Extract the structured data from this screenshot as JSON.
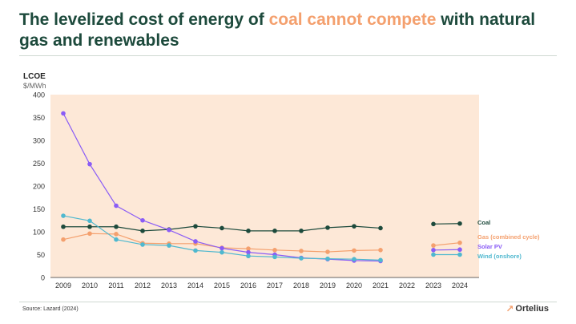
{
  "header": {
    "title_pre": "The levelized cost of energy of ",
    "title_accent": "coal cannot compete",
    "title_post": " with natural gas and renewables",
    "accent_color": "#f4a06e",
    "title_color": "#1d4a3c"
  },
  "axis_title": "LCOE",
  "axis_unit": "$/MWh",
  "footer": {
    "source": "Source: Lazard (2024)",
    "brand": "Ortelius",
    "brand_icon": "arrow-swoosh-icon"
  },
  "chart_data": {
    "type": "line",
    "categories": [
      "2009",
      "2010",
      "2011",
      "2012",
      "2013",
      "2014",
      "2015",
      "2016",
      "2017",
      "2018",
      "2019",
      "2020",
      "2021",
      "2022",
      "2023",
      "2024"
    ],
    "ylim": [
      0,
      400
    ],
    "yticks": [
      0,
      50,
      100,
      150,
      200,
      250,
      300,
      350,
      400
    ],
    "grid": false,
    "plot_background": "#fde8d7",
    "legend_placement": "right (labels at line ends)",
    "series": [
      {
        "name": "Coal",
        "color": "#1d4a3c",
        "values": [
          111,
          111,
          111,
          102,
          105,
          112,
          108,
          102,
          102,
          102,
          109,
          112,
          108,
          null,
          117,
          118
        ]
      },
      {
        "name": "Gas (combined cycle)",
        "color": "#f4a06e",
        "values": [
          83,
          96,
          95,
          75,
          74,
          74,
          65,
          63,
          60,
          58,
          56,
          59,
          60,
          null,
          70,
          76
        ]
      },
      {
        "name": "Solar PV",
        "color": "#8a5cf6",
        "values": [
          359,
          248,
          157,
          125,
          104,
          79,
          64,
          55,
          50,
          43,
          40,
          37,
          36,
          null,
          60,
          61
        ]
      },
      {
        "name": "Wind (onshore)",
        "color": "#4fb8cf",
        "values": [
          135,
          124,
          83,
          72,
          70,
          59,
          55,
          47,
          45,
          42,
          41,
          40,
          38,
          null,
          50,
          50
        ]
      }
    ]
  }
}
